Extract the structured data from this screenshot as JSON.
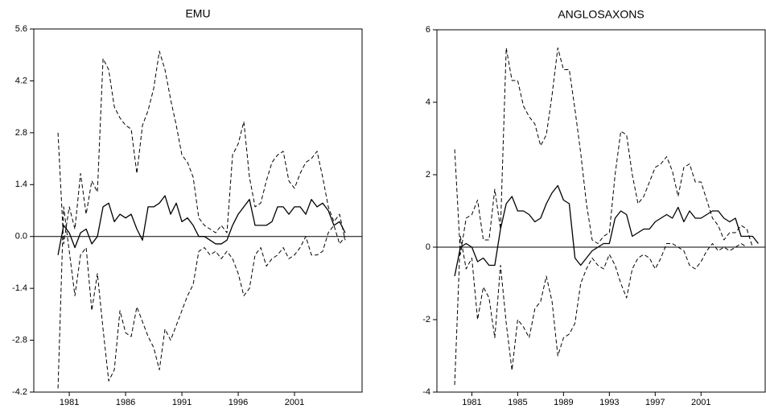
{
  "chart_data": [
    {
      "type": "line",
      "title": "EMU",
      "x": [
        1980,
        1980.5,
        1981,
        1981.5,
        1982,
        1982.5,
        1983,
        1983.5,
        1984,
        1984.5,
        1985,
        1985.5,
        1986,
        1986.5,
        1987,
        1987.5,
        1988,
        1988.5,
        1989,
        1989.5,
        1990,
        1990.5,
        1991,
        1991.5,
        1992,
        1992.5,
        1993,
        1993.5,
        1994,
        1994.5,
        1995,
        1995.5,
        1996,
        1996.5,
        1997,
        1997.5,
        1998,
        1998.5,
        1999,
        1999.5,
        2000,
        2000.5,
        2001,
        2001.5,
        2002,
        2002.5,
        2003,
        2003.5,
        2004,
        2004.5,
        2005,
        2005.5
      ],
      "series": [
        {
          "color": "#000000",
          "dash": false,
          "values": [
            -0.5,
            0.3,
            0.1,
            -0.3,
            0.1,
            0.2,
            -0.2,
            0.0,
            0.8,
            0.9,
            0.4,
            0.6,
            0.5,
            0.6,
            0.2,
            -0.1,
            0.8,
            0.8,
            0.9,
            1.1,
            0.6,
            0.9,
            0.4,
            0.5,
            0.3,
            0.0,
            0.0,
            -0.1,
            -0.2,
            -0.2,
            -0.1,
            0.3,
            0.6,
            0.8,
            1.0,
            0.3,
            0.3,
            0.3,
            0.4,
            0.8,
            0.8,
            0.6,
            0.8,
            0.8,
            0.6,
            1.0,
            0.8,
            0.9,
            0.7,
            0.3,
            0.4,
            0.1
          ]
        },
        {
          "color": "#000000",
          "dash": true,
          "values": [
            2.8,
            -0.2,
            0.8,
            0.2,
            1.7,
            0.6,
            1.5,
            1.2,
            4.8,
            4.5,
            3.5,
            3.2,
            3.0,
            2.9,
            1.7,
            3.0,
            3.4,
            4.0,
            5.0,
            4.5,
            3.7,
            3.0,
            2.2,
            2.0,
            1.6,
            0.5,
            0.3,
            0.2,
            0.1,
            0.3,
            0.1,
            2.2,
            2.5,
            3.1,
            1.6,
            0.8,
            0.9,
            1.5,
            2.0,
            2.2,
            2.3,
            1.5,
            1.3,
            1.7,
            2.0,
            2.1,
            2.3,
            1.6,
            0.8,
            0.4,
            0.6,
            -0.1
          ]
        },
        {
          "color": "#000000",
          "dash": true,
          "values": [
            -4.1,
            0.8,
            -0.4,
            -1.6,
            -0.5,
            -0.3,
            -2.0,
            -1.0,
            -2.5,
            -3.9,
            -3.6,
            -2.0,
            -2.6,
            -2.7,
            -1.9,
            -2.3,
            -2.7,
            -3.0,
            -3.6,
            -2.5,
            -2.8,
            -2.4,
            -2.0,
            -1.6,
            -1.3,
            -0.4,
            -0.3,
            -0.5,
            -0.4,
            -0.6,
            -0.4,
            -0.6,
            -1.0,
            -1.6,
            -1.4,
            -0.5,
            -0.3,
            -0.8,
            -0.6,
            -0.5,
            -0.3,
            -0.6,
            -0.5,
            -0.3,
            0.0,
            -0.5,
            -0.5,
            -0.4,
            0.1,
            0.3,
            -0.2,
            0.0
          ]
        }
      ],
      "xlim": [
        1977.85,
        2007
      ],
      "xticks": [
        1981,
        1986,
        1991,
        1996,
        2001
      ],
      "ylim": [
        -4.2,
        5.6
      ],
      "yticks": [
        5.6,
        4.2,
        2.8,
        1.4,
        {
          "value": 0,
          "label": "0.0"
        },
        -1.4,
        -2.8,
        -4.2
      ]
    },
    {
      "type": "line",
      "title": "ANGLOSAXONS",
      "x": [
        1979.5,
        1980,
        1980.5,
        1981,
        1981.5,
        1982,
        1982.5,
        1983,
        1983.5,
        1984,
        1984.5,
        1985,
        1985.5,
        1986,
        1986.5,
        1987,
        1987.5,
        1988,
        1988.5,
        1989,
        1989.5,
        1990,
        1990.5,
        1991,
        1991.5,
        1992,
        1992.5,
        1993,
        1993.5,
        1994,
        1994.5,
        1995,
        1995.5,
        1996,
        1996.5,
        1997,
        1997.5,
        1998,
        1998.5,
        1999,
        1999.5,
        2000,
        2000.5,
        2001,
        2001.5,
        2002,
        2002.5,
        2003,
        2003.5,
        2004,
        2004.5,
        2005,
        2005.5,
        2006
      ],
      "series": [
        {
          "color": "#000000",
          "dash": false,
          "values": [
            -0.8,
            0.0,
            0.1,
            0.0,
            -0.4,
            -0.3,
            -0.5,
            -0.5,
            0.5,
            1.2,
            1.4,
            1.0,
            1.0,
            0.9,
            0.7,
            0.8,
            1.2,
            1.5,
            1.7,
            1.3,
            1.2,
            -0.3,
            -0.5,
            -0.3,
            -0.1,
            0.0,
            0.1,
            0.1,
            0.8,
            1.0,
            0.9,
            0.3,
            0.4,
            0.5,
            0.5,
            0.7,
            0.8,
            0.9,
            0.8,
            1.1,
            0.7,
            1.0,
            0.8,
            0.8,
            0.9,
            1.0,
            1.0,
            0.8,
            0.7,
            0.8,
            0.3,
            0.3,
            0.3,
            0.1
          ]
        },
        {
          "color": "#000000",
          "dash": true,
          "values": [
            2.7,
            -0.2,
            0.8,
            0.9,
            1.3,
            0.2,
            0.2,
            1.6,
            0.5,
            5.5,
            4.6,
            4.6,
            3.9,
            3.6,
            3.4,
            2.8,
            3.1,
            4.2,
            5.5,
            4.9,
            4.9,
            3.8,
            2.6,
            1.2,
            0.2,
            0.1,
            0.3,
            0.4,
            2.0,
            3.2,
            3.1,
            2.0,
            1.2,
            1.4,
            1.8,
            2.2,
            2.3,
            2.5,
            2.1,
            1.4,
            2.2,
            2.3,
            1.8,
            1.8,
            1.3,
            0.8,
            0.6,
            0.2,
            0.4,
            0.4,
            0.6,
            0.5,
            0.0,
            0.0
          ]
        },
        {
          "color": "#000000",
          "dash": true,
          "values": [
            -3.8,
            0.3,
            -0.6,
            -0.3,
            -2.0,
            -1.1,
            -1.4,
            -2.5,
            -0.5,
            -2.1,
            -3.4,
            -2.0,
            -2.2,
            -2.5,
            -1.7,
            -1.5,
            -0.8,
            -1.5,
            -3.0,
            -2.5,
            -2.4,
            -2.1,
            -1.0,
            -0.6,
            -0.3,
            -0.5,
            -0.6,
            -0.2,
            -0.5,
            -1.0,
            -1.4,
            -0.6,
            -0.3,
            -0.2,
            -0.3,
            -0.6,
            -0.3,
            0.1,
            0.1,
            0.0,
            -0.1,
            -0.5,
            -0.6,
            -0.4,
            -0.1,
            0.1,
            -0.1,
            0.0,
            -0.1,
            0.0,
            0.1,
            0.0,
            0.0,
            0.0
          ]
        }
      ],
      "xlim": [
        1977.95,
        2006.6
      ],
      "xticks": [
        1981,
        1985,
        1989,
        1993,
        1997,
        2001
      ],
      "ylim": [
        -4,
        6
      ],
      "yticks": [
        6,
        4,
        2,
        0,
        -2,
        -4
      ]
    }
  ]
}
